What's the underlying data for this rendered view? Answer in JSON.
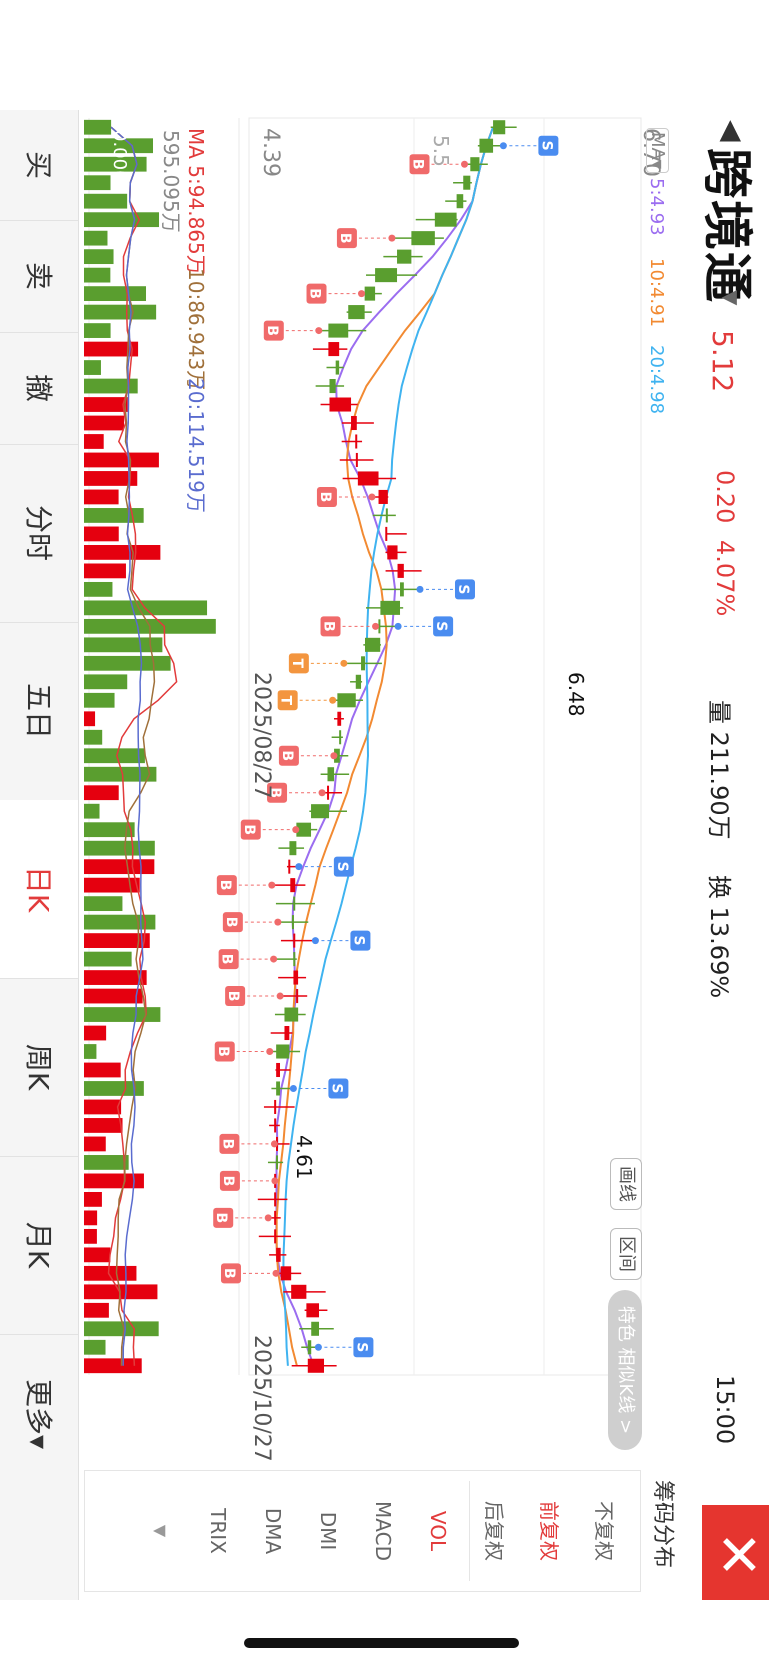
{
  "header": {
    "back_glyph": "◀",
    "title": "跨境通",
    "next_glyph": "▼",
    "price": "5.12",
    "change": "0.20",
    "change_pct": "4.07%",
    "volume": "量 211.90万",
    "turnover": "换 13.69%",
    "time": "15:00",
    "close_glyph": "✕"
  },
  "chart": {
    "ma_label": "MA▾",
    "ma5": "5:4.93",
    "ma10": "10:4.91",
    "ma20": "20:4.98",
    "price_high_label": "6.70",
    "price_mid_label": "5.5",
    "price_low_label": "4.39",
    "max_annotation": "6.48",
    "min_annotation": "4.61",
    "date_mid": "2025/08/27",
    "date_end": "2025/10/27",
    "vol_ma_label": "MA 5:94.865万",
    "vol_ma10": "10:86.943万",
    "vol_ma20": "20:114.519万",
    "vol_max_label": "595.095万",
    "vol_zero_label": "0.000",
    "draw_line": "画线",
    "range": "区间",
    "similar": "特色 相似K线 >",
    "buy_marker": "B",
    "sell_marker": "S",
    "t_marker": "T",
    "colors": {
      "up": "#e5000f",
      "down": "#5a9e2f",
      "ma5": "#9b6df0",
      "ma10": "#f28a32",
      "ma20": "#3fb3f0"
    }
  },
  "side_panel": {
    "chip": "筹码分布",
    "items": [
      "不复权",
      "前复权",
      "后复权",
      "VOL",
      "MACD",
      "DMI",
      "DMA",
      "TRIX"
    ],
    "active": [
      "前复权",
      "VOL"
    ],
    "more_glyph": "▼"
  },
  "tabs": {
    "items": [
      "买",
      "卖",
      "撤",
      "分时",
      "五日",
      "日K",
      "周K",
      "月K",
      "更多▾"
    ],
    "active": "日K"
  },
  "chart_data": {
    "type": "candlestick",
    "series": [
      {
        "name": "MA5",
        "value": 4.93
      },
      {
        "name": "MA10",
        "value": 4.91
      },
      {
        "name": "MA20",
        "value": 4.98
      }
    ],
    "x_labels": [
      "2025/08/27",
      "2025/10/27"
    ],
    "y_labels": [
      "6.70",
      "4.39"
    ],
    "annotations": [
      "6.48",
      "4.61"
    ],
    "volume_ma": [
      "MA 5:94.865万",
      "10:86.943万",
      "20:114.519万"
    ],
    "volume_range": [
      "0.000",
      "595.095万"
    ]
  }
}
